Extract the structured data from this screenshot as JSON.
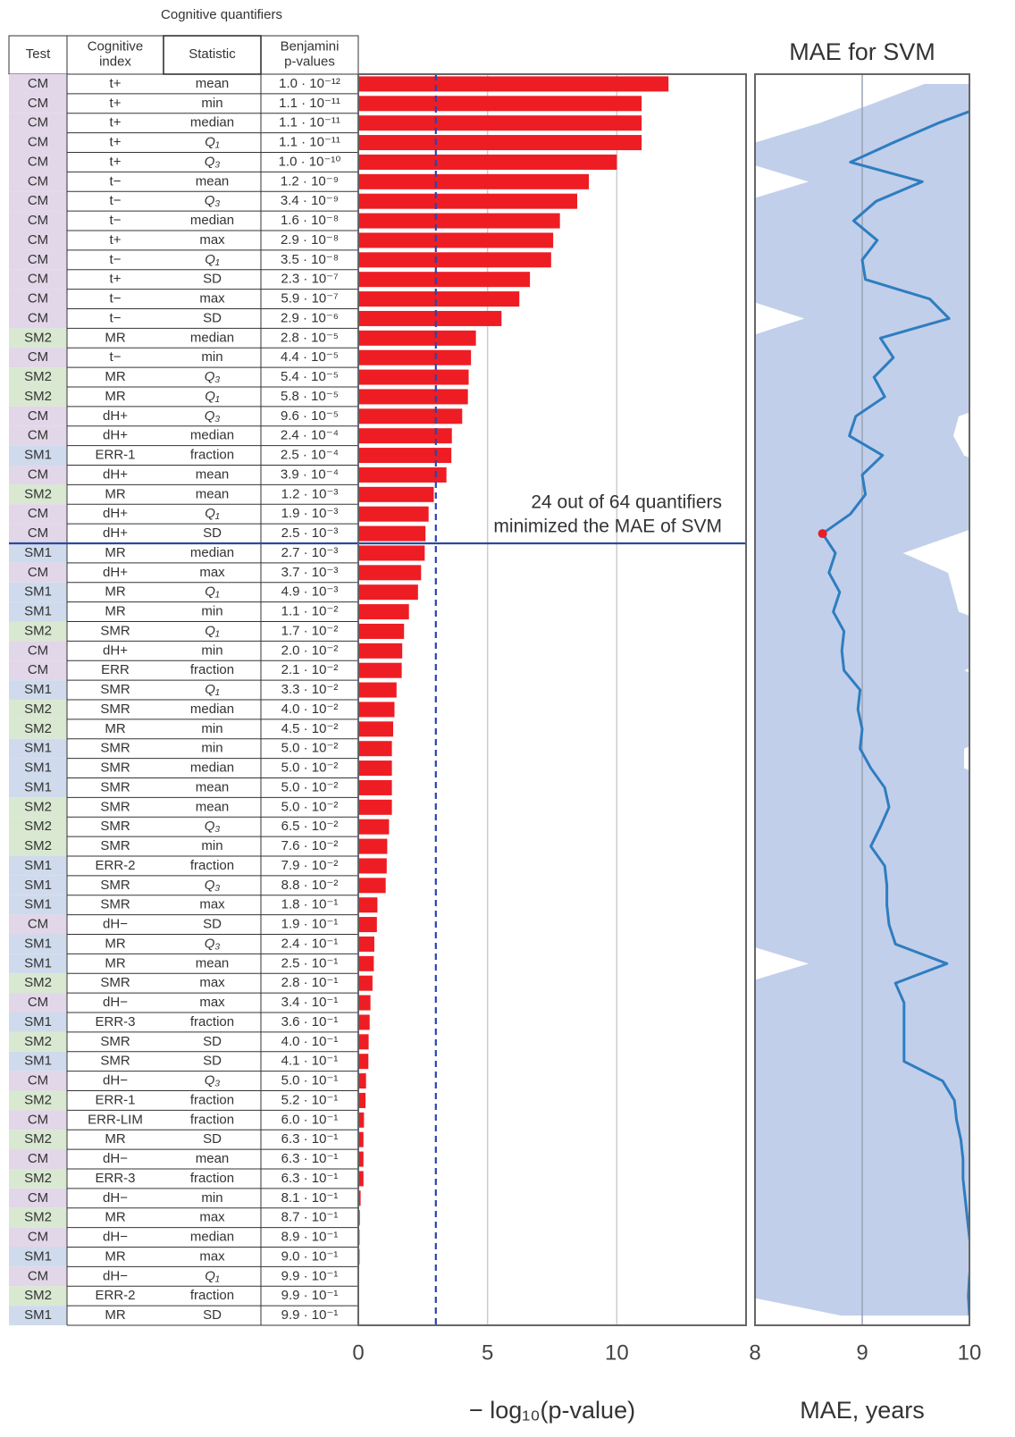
{
  "table": {
    "title": "Cognitive quantifiers",
    "header": [
      [
        "Test"
      ],
      [
        "Cognitive",
        "index"
      ],
      [
        "Statistic"
      ],
      [
        "Benjamini",
        "p-values"
      ]
    ],
    "test_colors": {
      "CM": "#e2d6e9",
      "SM2": "#d9e8d1",
      "SM1": "#cfdbec"
    },
    "rows": [
      [
        "CM",
        "t+",
        "mean",
        "1.0 · 10⁻¹²"
      ],
      [
        "CM",
        "t+",
        "min",
        "1.1 · 10⁻¹¹"
      ],
      [
        "CM",
        "t+",
        "median",
        "1.1 · 10⁻¹¹"
      ],
      [
        "CM",
        "t+",
        "Q₁",
        "1.1 · 10⁻¹¹"
      ],
      [
        "CM",
        "t+",
        "Q₃",
        "1.0 · 10⁻¹⁰"
      ],
      [
        "CM",
        "t−",
        "mean",
        "1.2 · 10⁻⁹"
      ],
      [
        "CM",
        "t−",
        "Q₃",
        "3.4 · 10⁻⁹"
      ],
      [
        "CM",
        "t−",
        "median",
        "1.6 · 10⁻⁸"
      ],
      [
        "CM",
        "t+",
        "max",
        "2.9 · 10⁻⁸"
      ],
      [
        "CM",
        "t−",
        "Q₁",
        "3.5 · 10⁻⁸"
      ],
      [
        "CM",
        "t+",
        "SD",
        "2.3 · 10⁻⁷"
      ],
      [
        "CM",
        "t−",
        "max",
        "5.9 · 10⁻⁷"
      ],
      [
        "CM",
        "t−",
        "SD",
        "2.9 · 10⁻⁶"
      ],
      [
        "SM2",
        "MR",
        "median",
        "2.8 · 10⁻⁵"
      ],
      [
        "CM",
        "t−",
        "min",
        "4.4 · 10⁻⁵"
      ],
      [
        "SM2",
        "MR",
        "Q₃",
        "5.4 · 10⁻⁵"
      ],
      [
        "SM2",
        "MR",
        "Q₁",
        "5.8 · 10⁻⁵"
      ],
      [
        "CM",
        "dH+",
        "Q₃",
        "9.6 · 10⁻⁵"
      ],
      [
        "CM",
        "dH+",
        "median",
        "2.4 · 10⁻⁴"
      ],
      [
        "SM1",
        "ERR-1",
        "fraction",
        "2.5 · 10⁻⁴"
      ],
      [
        "CM",
        "dH+",
        "mean",
        "3.9 · 10⁻⁴"
      ],
      [
        "SM2",
        "MR",
        "mean",
        "1.2 · 10⁻³"
      ],
      [
        "CM",
        "dH+",
        "Q₁",
        "1.9 · 10⁻³"
      ],
      [
        "CM",
        "dH+",
        "SD",
        "2.5 · 10⁻³"
      ],
      [
        "SM1",
        "MR",
        "median",
        "2.7 · 10⁻³"
      ],
      [
        "CM",
        "dH+",
        "max",
        "3.7 · 10⁻³"
      ],
      [
        "SM1",
        "MR",
        "Q₁",
        "4.9 · 10⁻³"
      ],
      [
        "SM1",
        "MR",
        "min",
        "1.1 · 10⁻²"
      ],
      [
        "SM2",
        "SMR",
        "Q₁",
        "1.7 · 10⁻²"
      ],
      [
        "CM",
        "dH+",
        "min",
        "2.0 · 10⁻²"
      ],
      [
        "CM",
        "ERR",
        "fraction",
        "2.1 · 10⁻²"
      ],
      [
        "SM1",
        "SMR",
        "Q₁",
        "3.3 · 10⁻²"
      ],
      [
        "SM2",
        "SMR",
        "median",
        "4.0 · 10⁻²"
      ],
      [
        "SM2",
        "MR",
        "min",
        "4.5 · 10⁻²"
      ],
      [
        "SM1",
        "SMR",
        "min",
        "5.0 · 10⁻²"
      ],
      [
        "SM1",
        "SMR",
        "median",
        "5.0 · 10⁻²"
      ],
      [
        "SM1",
        "SMR",
        "mean",
        "5.0 · 10⁻²"
      ],
      [
        "SM2",
        "SMR",
        "mean",
        "5.0 · 10⁻²"
      ],
      [
        "SM2",
        "SMR",
        "Q₃",
        "6.5 · 10⁻²"
      ],
      [
        "SM2",
        "SMR",
        "min",
        "7.6 · 10⁻²"
      ],
      [
        "SM1",
        "ERR-2",
        "fraction",
        "7.9 · 10⁻²"
      ],
      [
        "SM1",
        "SMR",
        "Q₃",
        "8.8 · 10⁻²"
      ],
      [
        "SM1",
        "SMR",
        "max",
        "1.8 · 10⁻¹"
      ],
      [
        "CM",
        "dH−",
        "SD",
        "1.9 · 10⁻¹"
      ],
      [
        "SM1",
        "MR",
        "Q₃",
        "2.4 · 10⁻¹"
      ],
      [
        "SM1",
        "MR",
        "mean",
        "2.5 · 10⁻¹"
      ],
      [
        "SM2",
        "SMR",
        "max",
        "2.8 · 10⁻¹"
      ],
      [
        "CM",
        "dH−",
        "max",
        "3.4 · 10⁻¹"
      ],
      [
        "SM1",
        "ERR-3",
        "fraction",
        "3.6 · 10⁻¹"
      ],
      [
        "SM2",
        "SMR",
        "SD",
        "4.0 · 10⁻¹"
      ],
      [
        "SM1",
        "SMR",
        "SD",
        "4.1 · 10⁻¹"
      ],
      [
        "CM",
        "dH−",
        "Q₃",
        "5.0 · 10⁻¹"
      ],
      [
        "SM2",
        "ERR-1",
        "fraction",
        "5.2 · 10⁻¹"
      ],
      [
        "CM",
        "ERR-LIM",
        "fraction",
        "6.0 · 10⁻¹"
      ],
      [
        "SM2",
        "MR",
        "SD",
        "6.3 · 10⁻¹"
      ],
      [
        "CM",
        "dH−",
        "mean",
        "6.3 · 10⁻¹"
      ],
      [
        "SM2",
        "ERR-3",
        "fraction",
        "6.3 · 10⁻¹"
      ],
      [
        "CM",
        "dH−",
        "min",
        "8.1 · 10⁻¹"
      ],
      [
        "SM2",
        "MR",
        "max",
        "8.7 · 10⁻¹"
      ],
      [
        "CM",
        "dH−",
        "median",
        "8.9 · 10⁻¹"
      ],
      [
        "SM1",
        "MR",
        "max",
        "9.0 · 10⁻¹"
      ],
      [
        "CM",
        "dH−",
        "Q₁",
        "9.9 · 10⁻¹"
      ],
      [
        "SM2",
        "ERR-2",
        "fraction",
        "9.9 · 10⁻¹"
      ],
      [
        "SM1",
        "MR",
        "SD",
        "9.9 · 10⁻¹"
      ]
    ]
  },
  "chart_data": [
    {
      "type": "hbar",
      "x_label": "− log₁₀(p-value)",
      "color": "#ee1d23",
      "values": [
        12.0,
        10.96,
        10.96,
        10.96,
        10.0,
        8.92,
        8.47,
        7.8,
        7.54,
        7.46,
        6.64,
        6.23,
        5.54,
        4.55,
        4.36,
        4.27,
        4.24,
        4.02,
        3.62,
        3.6,
        3.41,
        2.92,
        2.72,
        2.6,
        2.57,
        2.43,
        2.31,
        1.96,
        1.77,
        1.7,
        1.68,
        1.48,
        1.4,
        1.35,
        1.3,
        1.3,
        1.3,
        1.3,
        1.19,
        1.12,
        1.1,
        1.06,
        0.74,
        0.72,
        0.62,
        0.6,
        0.55,
        0.47,
        0.44,
        0.4,
        0.39,
        0.3,
        0.28,
        0.22,
        0.2,
        0.2,
        0.2,
        0.09,
        0.06,
        0.05,
        0.05,
        0,
        0,
        0
      ],
      "xlim": [
        0,
        15
      ],
      "xticks": [
        0,
        5,
        10
      ],
      "grid": true,
      "threshold": 3,
      "threshold_color": "#2a44b0",
      "separator_after": 24,
      "separator_color": "#2b4a9a",
      "annotation": [
        "24 out of 64 quantifiers",
        "minimized the MAE of SVM"
      ]
    },
    {
      "type": "line",
      "title": "MAE for SVM",
      "x_label": "MAE, years",
      "color": "#2e7dc0",
      "band_color": "#b7c7e6",
      "highlight_color": "#e3202a",
      "highlight_index": 23,
      "values": [
        null,
        10.2,
        9.71,
        9.29,
        8.89,
        9.56,
        9.13,
        8.92,
        9.14,
        9.0,
        9.03,
        9.63,
        9.81,
        9.17,
        9.29,
        9.11,
        9.21,
        8.94,
        8.88,
        9.19,
        9.0,
        9.03,
        8.89,
        8.63,
        8.75,
        8.69,
        8.79,
        8.73,
        8.83,
        8.81,
        8.83,
        8.98,
        8.96,
        9.0,
        8.98,
        9.08,
        9.21,
        9.25,
        9.17,
        9.08,
        9.21,
        9.23,
        9.23,
        9.25,
        9.31,
        9.79,
        9.31,
        9.39,
        9.39,
        9.39,
        9.39,
        9.75,
        9.86,
        9.88,
        9.92,
        9.94,
        9.94,
        9.96,
        9.98,
        10.0,
        10.02,
        10.0,
        9.99,
        10.0
      ],
      "band": {
        "lower": [
          9.58,
          9.1,
          8.6,
          8.0,
          7.9,
          8.5,
          7.9,
          7.9,
          7.9,
          7.9,
          7.9,
          7.9,
          8.46,
          7.9,
          7.9,
          7.9,
          7.9,
          7.9,
          7.9,
          7.9,
          7.9,
          7.9,
          7.9,
          7.9,
          7.9,
          7.9,
          7.9,
          7.9,
          7.9,
          7.9,
          7.9,
          7.9,
          7.9,
          7.9,
          7.9,
          7.9,
          7.9,
          7.9,
          7.9,
          7.9,
          7.9,
          7.9,
          7.9,
          7.9,
          7.9,
          8.5,
          7.9,
          7.9,
          7.9,
          7.9,
          7.9,
          7.9,
          7.9,
          7.9,
          7.9,
          7.9,
          7.9,
          7.9,
          7.9,
          7.9,
          7.9,
          7.9,
          7.9,
          8.8
        ],
        "upper": [
          10.4,
          10.4,
          10.4,
          10.4,
          10.4,
          10.4,
          10.4,
          10.4,
          10.4,
          10.4,
          10.4,
          10.4,
          10.4,
          10.4,
          10.4,
          10.4,
          10.4,
          9.9,
          9.85,
          9.95,
          10.4,
          10.4,
          10.4,
          9.9,
          9.38,
          9.8,
          9.85,
          9.9,
          10.4,
          10.4,
          9.95,
          10.4,
          10.4,
          10.4,
          9.95,
          9.95,
          10.4,
          10.4,
          10.4,
          10.4,
          10.4,
          10.4,
          10.4,
          10.4,
          10.4,
          10.4,
          10.4,
          10.4,
          10.4,
          10.4,
          10.4,
          10.4,
          10.4,
          10.4,
          10.4,
          10.4,
          10.4,
          10.4,
          10.4,
          10.4,
          10.4,
          10.4,
          10.4,
          10.4
        ]
      },
      "xlim": [
        8,
        10
      ],
      "xticks": [
        8,
        9,
        10
      ],
      "grid": true
    }
  ]
}
